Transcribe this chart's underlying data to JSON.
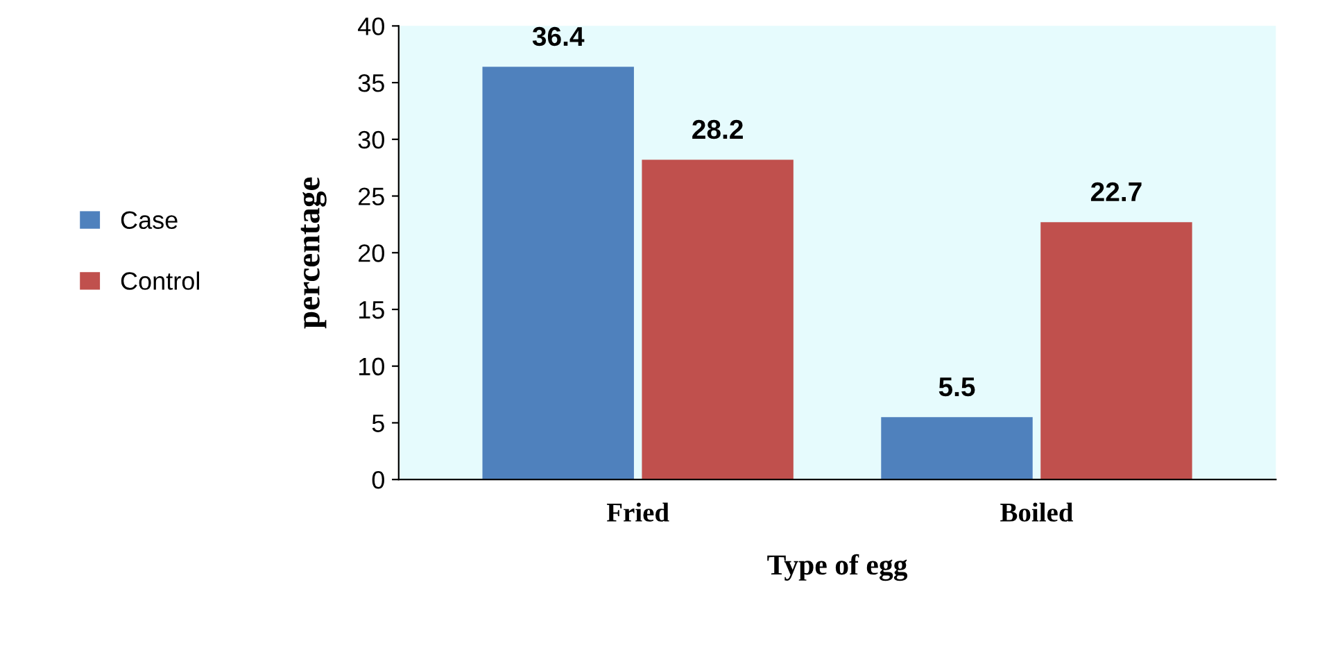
{
  "chart_data": {
    "type": "bar",
    "xlabel": "Type of egg",
    "ylabel": "percentage",
    "categories": [
      "Fried",
      "Boiled"
    ],
    "series": [
      {
        "name": "Case",
        "color": "#4f81bd",
        "values": [
          36.4,
          5.5
        ]
      },
      {
        "name": "Control",
        "color": "#c0504d",
        "values": [
          28.2,
          22.7
        ]
      }
    ],
    "ylim": [
      0,
      40
    ],
    "yticks": [
      0,
      5,
      10,
      15,
      20,
      25,
      30,
      35,
      40
    ],
    "data_labels": true,
    "legend": "left",
    "grid": false
  }
}
